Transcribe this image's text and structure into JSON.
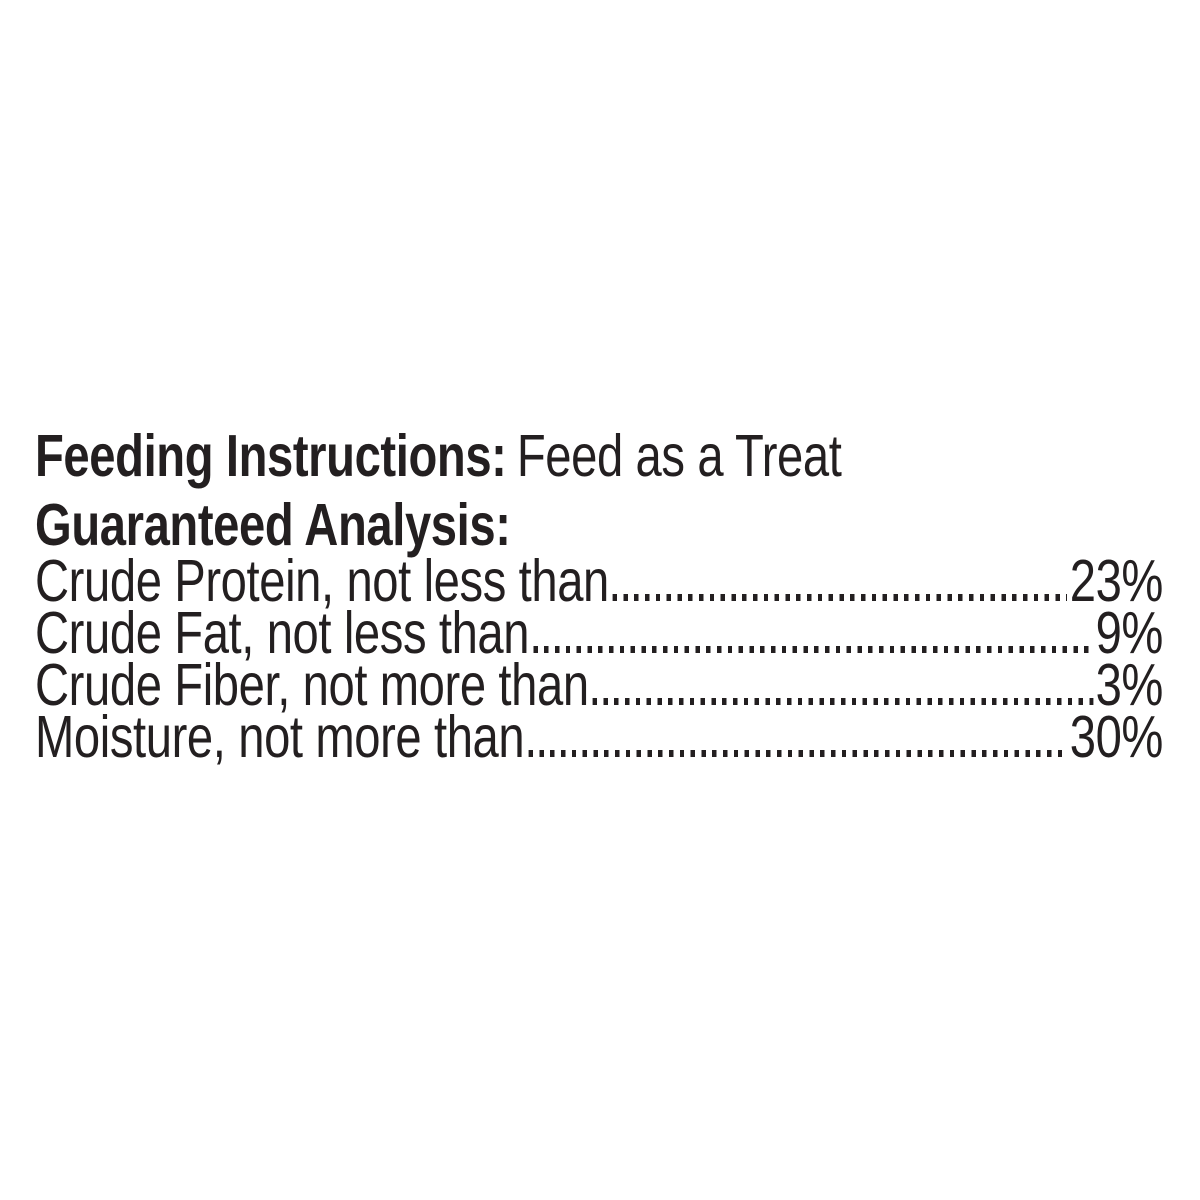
{
  "colors": {
    "text": "#231f20",
    "background": "#ffffff"
  },
  "feeding_instructions": {
    "label": "Feeding Instructions:",
    "value": "Feed as a Treat"
  },
  "guaranteed_analysis": {
    "title": "Guaranteed Analysis:",
    "rows": [
      {
        "label": "Crude Protein, not less than",
        "value": "23%"
      },
      {
        "label": "Crude Fat, not less than",
        "value": "9%"
      },
      {
        "label": "Crude Fiber, not more than",
        "value": "3%"
      },
      {
        "label": "Moisture, not more than",
        "value": "30%"
      }
    ]
  }
}
